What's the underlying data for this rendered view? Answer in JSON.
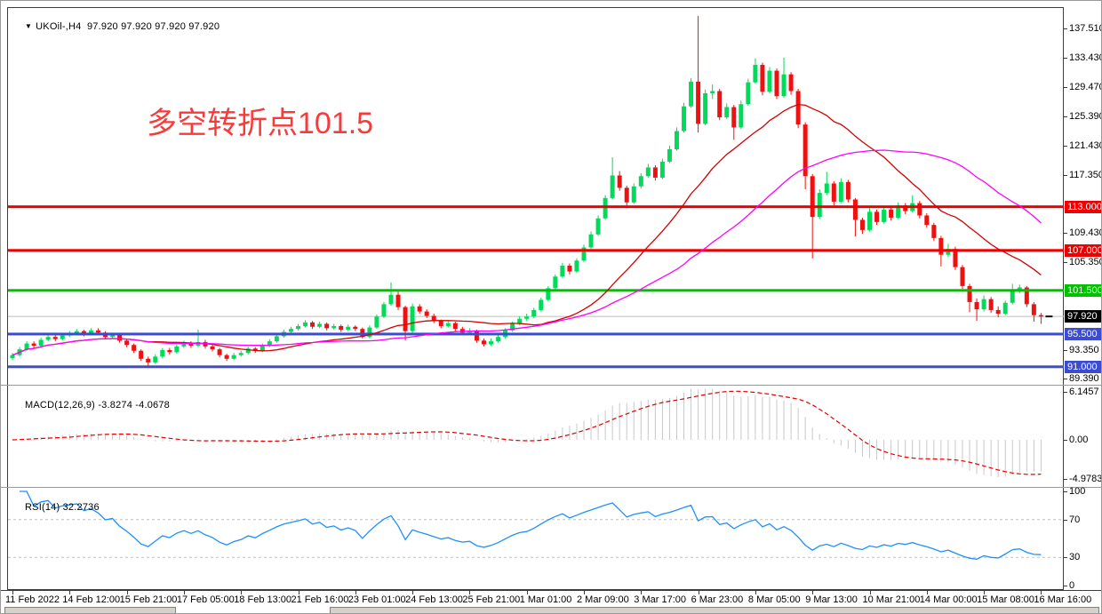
{
  "window": {
    "title_symbol": "UKOil-,H4",
    "title_quotes": "97.920 97.920 97.920 97.920"
  },
  "annotation": {
    "text": "多空转折点101.5",
    "color": "#f93a3a"
  },
  "chart_data": {
    "type": "candlestick",
    "symbol": "UKOil-",
    "timeframe": "H4",
    "title": "UKOil-,H4 97.920 97.920 97.920 97.920",
    "up_color": "#00db5a",
    "down_color": "#ee1111",
    "price_axis": {
      "min": 88.53,
      "max": 140.32,
      "ticks": [
        137.51,
        133.43,
        129.47,
        125.39,
        121.43,
        117.35,
        109.43,
        105.35,
        93.35,
        89.39
      ]
    },
    "time_labels": [
      "11 Feb 2022",
      "14 Feb 12:00",
      "15 Feb 21:00",
      "17 Feb 05:00",
      "18 Feb 13:00",
      "21 Feb 16:00",
      "23 Feb 01:00",
      "24 Feb 13:00",
      "25 Feb 21:00",
      "1 Mar 01:00",
      "2 Mar 09:00",
      "3 Mar 17:00",
      "6 Mar 23:00",
      "8 Mar 05:00",
      "9 Mar 13:00",
      "10 Mar 21:00",
      "14 Mar 00:00",
      "15 Mar 08:00",
      "16 Mar 16:00"
    ],
    "bars_per_label": 8,
    "levels": [
      {
        "value": 113.0,
        "label": "113.000",
        "color": "#ee0000"
      },
      {
        "value": 107.0,
        "label": "107.000",
        "color": "#ee0000"
      },
      {
        "value": 101.5,
        "label": "101.500",
        "color": "#00c000"
      },
      {
        "value": 95.5,
        "label": "95.500",
        "color": "#3b4cd1"
      },
      {
        "value": 91.0,
        "label": "91.000",
        "color": "#3b4cd1"
      }
    ],
    "current_price": {
      "value": 97.92,
      "label": "97.920",
      "line_color": "#bdbdbd",
      "label_bg": "#000000"
    },
    "moving_averages": [
      {
        "period": 20,
        "color": "#d40000"
      },
      {
        "period": 40,
        "color": "#ff00ff"
      }
    ],
    "candles": [
      [
        92.2,
        92.9,
        91.9,
        92.6
      ],
      [
        92.6,
        93.7,
        92.4,
        93.4
      ],
      [
        93.4,
        94.5,
        93.2,
        94.2
      ],
      [
        94.2,
        94.5,
        93.6,
        93.9
      ],
      [
        93.9,
        95.0,
        93.7,
        94.7
      ],
      [
        94.7,
        95.4,
        94.5,
        95.1
      ],
      [
        95.1,
        95.4,
        94.5,
        94.8
      ],
      [
        94.8,
        95.6,
        94.6,
        95.3
      ],
      [
        95.3,
        95.9,
        95.1,
        95.6
      ],
      [
        95.6,
        96.2,
        95.4,
        95.9
      ],
      [
        95.9,
        96.1,
        95.2,
        95.5
      ],
      [
        95.5,
        96.3,
        95.3,
        96.0
      ],
      [
        96.0,
        96.3,
        95.4,
        95.7
      ],
      [
        95.7,
        95.9,
        94.8,
        95.1
      ],
      [
        95.1,
        95.7,
        94.9,
        95.4
      ],
      [
        95.4,
        95.6,
        94.3,
        94.6
      ],
      [
        94.6,
        94.9,
        93.7,
        94.0
      ],
      [
        94.0,
        94.2,
        92.9,
        93.2
      ],
      [
        93.2,
        93.4,
        91.8,
        92.1
      ],
      [
        92.1,
        92.4,
        90.9,
        91.6
      ],
      [
        91.6,
        92.7,
        91.4,
        92.4
      ],
      [
        92.4,
        93.6,
        92.2,
        93.3
      ],
      [
        93.3,
        93.6,
        92.7,
        93.0
      ],
      [
        93.0,
        94.1,
        92.8,
        93.8
      ],
      [
        93.8,
        94.6,
        93.6,
        94.3
      ],
      [
        94.3,
        94.5,
        93.6,
        93.9
      ],
      [
        93.9,
        96.1,
        93.7,
        94.4
      ],
      [
        94.4,
        94.7,
        93.5,
        93.8
      ],
      [
        93.8,
        94.0,
        93.1,
        93.4
      ],
      [
        93.4,
        93.6,
        92.3,
        92.6
      ],
      [
        92.6,
        92.8,
        91.8,
        92.1
      ],
      [
        92.1,
        92.9,
        91.9,
        92.6
      ],
      [
        92.6,
        93.2,
        92.4,
        92.9
      ],
      [
        92.9,
        93.8,
        92.7,
        93.5
      ],
      [
        93.5,
        93.7,
        92.9,
        93.2
      ],
      [
        93.2,
        94.2,
        93.0,
        93.9
      ],
      [
        93.9,
        94.8,
        93.7,
        94.5
      ],
      [
        94.5,
        95.5,
        94.3,
        95.2
      ],
      [
        95.2,
        96.1,
        95.0,
        95.8
      ],
      [
        95.8,
        96.5,
        95.5,
        96.2
      ],
      [
        96.2,
        96.9,
        96.0,
        96.6
      ],
      [
        96.6,
        97.4,
        96.4,
        97.1
      ],
      [
        97.1,
        97.3,
        96.2,
        96.5
      ],
      [
        96.5,
        97.2,
        96.3,
        96.9
      ],
      [
        96.9,
        97.1,
        96.0,
        96.3
      ],
      [
        96.3,
        96.9,
        96.1,
        96.6
      ],
      [
        96.6,
        96.8,
        95.8,
        96.1
      ],
      [
        96.1,
        96.8,
        95.9,
        96.5
      ],
      [
        96.5,
        96.7,
        95.9,
        96.2
      ],
      [
        96.2,
        96.4,
        94.9,
        95.1
      ],
      [
        95.1,
        96.7,
        94.9,
        96.4
      ],
      [
        96.4,
        98.2,
        96.2,
        97.9
      ],
      [
        97.9,
        99.9,
        97.7,
        99.6
      ],
      [
        99.6,
        102.6,
        99.4,
        100.9
      ],
      [
        100.9,
        101.3,
        98.8,
        99.2
      ],
      [
        99.2,
        99.4,
        94.6,
        95.9
      ],
      [
        95.9,
        99.7,
        95.6,
        99.3
      ],
      [
        99.3,
        99.6,
        98.3,
        98.6
      ],
      [
        98.6,
        98.9,
        97.7,
        98.0
      ],
      [
        98.0,
        98.3,
        97.0,
        97.3
      ],
      [
        97.3,
        97.5,
        96.3,
        96.6
      ],
      [
        96.6,
        97.4,
        96.4,
        97.0
      ],
      [
        97.0,
        97.2,
        95.9,
        96.2
      ],
      [
        96.2,
        96.5,
        95.4,
        95.7
      ],
      [
        95.7,
        96.3,
        95.5,
        95.9
      ],
      [
        95.9,
        96.1,
        94.3,
        94.6
      ],
      [
        94.6,
        94.9,
        93.8,
        94.1
      ],
      [
        94.1,
        94.9,
        93.9,
        94.5
      ],
      [
        94.5,
        95.4,
        94.3,
        95.1
      ],
      [
        95.1,
        96.3,
        94.9,
        96.0
      ],
      [
        96.0,
        97.2,
        95.8,
        96.9
      ],
      [
        96.9,
        97.9,
        96.7,
        97.6
      ],
      [
        97.6,
        98.3,
        97.3,
        97.9
      ],
      [
        97.9,
        99.1,
        97.7,
        98.8
      ],
      [
        98.8,
        100.5,
        98.6,
        100.2
      ],
      [
        100.2,
        102.1,
        100.0,
        101.8
      ],
      [
        101.8,
        103.7,
        101.6,
        103.4
      ],
      [
        103.4,
        105.3,
        103.2,
        104.9
      ],
      [
        104.9,
        105.2,
        103.7,
        104.1
      ],
      [
        104.1,
        105.9,
        103.9,
        105.6
      ],
      [
        105.6,
        107.8,
        105.4,
        107.4
      ],
      [
        107.4,
        109.6,
        107.2,
        109.2
      ],
      [
        109.2,
        111.8,
        109.0,
        111.4
      ],
      [
        111.4,
        114.6,
        111.2,
        114.2
      ],
      [
        114.2,
        119.8,
        114.0,
        117.3
      ],
      [
        117.3,
        117.9,
        115.2,
        115.6
      ],
      [
        115.6,
        115.9,
        112.8,
        113.6
      ],
      [
        113.6,
        116.2,
        113.4,
        115.8
      ],
      [
        115.8,
        117.6,
        115.5,
        117.2
      ],
      [
        117.2,
        118.9,
        117.0,
        118.4
      ],
      [
        118.4,
        118.7,
        116.6,
        117.0
      ],
      [
        117.0,
        119.6,
        116.8,
        119.2
      ],
      [
        119.2,
        121.4,
        119.0,
        120.9
      ],
      [
        120.9,
        123.9,
        120.7,
        123.4
      ],
      [
        123.4,
        127.3,
        123.2,
        126.8
      ],
      [
        126.8,
        130.7,
        126.6,
        130.2
      ],
      [
        130.2,
        139.2,
        123.2,
        124.4
      ],
      [
        124.4,
        129.1,
        124.2,
        128.6
      ],
      [
        128.6,
        129.8,
        127.8,
        128.9
      ],
      [
        128.9,
        129.2,
        124.9,
        125.3
      ],
      [
        125.3,
        127.2,
        125.0,
        126.7
      ],
      [
        126.7,
        127.0,
        122.2,
        123.9
      ],
      [
        123.9,
        127.6,
        123.7,
        127.1
      ],
      [
        127.1,
        130.6,
        126.9,
        130.1
      ],
      [
        130.1,
        133.4,
        129.9,
        132.5
      ],
      [
        132.5,
        132.8,
        128.3,
        128.8
      ],
      [
        128.8,
        132.2,
        128.6,
        131.7
      ],
      [
        131.7,
        132.0,
        127.8,
        128.2
      ],
      [
        128.2,
        133.5,
        128.0,
        131.2
      ],
      [
        131.2,
        131.5,
        128.4,
        128.9
      ],
      [
        128.9,
        129.2,
        123.8,
        124.3
      ],
      [
        124.3,
        124.6,
        115.4,
        117.2
      ],
      [
        117.2,
        117.5,
        105.9,
        111.6
      ],
      [
        111.6,
        115.4,
        111.3,
        114.9
      ],
      [
        114.9,
        117.8,
        114.6,
        116.2
      ],
      [
        116.2,
        116.5,
        113.2,
        113.7
      ],
      [
        113.7,
        116.9,
        113.5,
        116.4
      ],
      [
        116.4,
        116.7,
        113.6,
        114.0
      ],
      [
        114.0,
        114.2,
        108.9,
        111.2
      ],
      [
        111.2,
        111.5,
        109.3,
        109.8
      ],
      [
        109.8,
        112.8,
        109.6,
        112.3
      ],
      [
        112.3,
        112.6,
        110.5,
        110.9
      ],
      [
        110.9,
        113.0,
        110.7,
        112.6
      ],
      [
        112.6,
        112.9,
        111.1,
        111.5
      ],
      [
        111.5,
        113.6,
        111.3,
        113.2
      ],
      [
        113.2,
        113.5,
        112.0,
        112.4
      ],
      [
        112.4,
        114.6,
        112.2,
        113.5
      ],
      [
        113.5,
        113.8,
        111.4,
        111.8
      ],
      [
        111.8,
        112.1,
        110.1,
        110.5
      ],
      [
        110.5,
        110.8,
        108.3,
        108.7
      ],
      [
        108.7,
        109.0,
        104.8,
        106.4
      ],
      [
        106.4,
        107.9,
        106.1,
        107.2
      ],
      [
        107.2,
        107.5,
        104.3,
        104.7
      ],
      [
        104.7,
        105.0,
        101.7,
        102.1
      ],
      [
        102.1,
        102.4,
        98.5,
        99.9
      ],
      [
        99.9,
        100.4,
        97.3,
        98.9
      ],
      [
        98.9,
        100.8,
        98.6,
        100.3
      ],
      [
        100.3,
        100.6,
        98.4,
        98.8
      ],
      [
        98.8,
        99.3,
        97.8,
        98.3
      ],
      [
        98.3,
        100.1,
        98.1,
        99.8
      ],
      [
        99.8,
        102.4,
        99.6,
        101.6
      ],
      [
        101.6,
        102.3,
        101.1,
        101.9
      ],
      [
        101.9,
        102.1,
        99.2,
        99.6
      ],
      [
        99.6,
        99.9,
        97.2,
        98.1
      ],
      [
        98.1,
        98.4,
        96.9,
        97.9
      ]
    ]
  },
  "macd": {
    "name_label": "MACD(12,26,9)",
    "values_label": "-3.8274 -4.0678",
    "fast": 12,
    "slow": 26,
    "signal": 9,
    "axis_ticks": [
      "6.1457",
      "0.00",
      "-4.9783"
    ],
    "axis_values": [
      6.1457,
      0,
      -4.9783
    ],
    "histogram_color": "#c8c8c8",
    "signal_color": "#e00000"
  },
  "rsi": {
    "name_label": "RSI(14)",
    "value_label": "32.2736",
    "period": 14,
    "axis_values": [
      100,
      70,
      30,
      0
    ],
    "levels": [
      70,
      30
    ],
    "line_color": "#1e90ff",
    "level_color": "#c0c0c0"
  }
}
